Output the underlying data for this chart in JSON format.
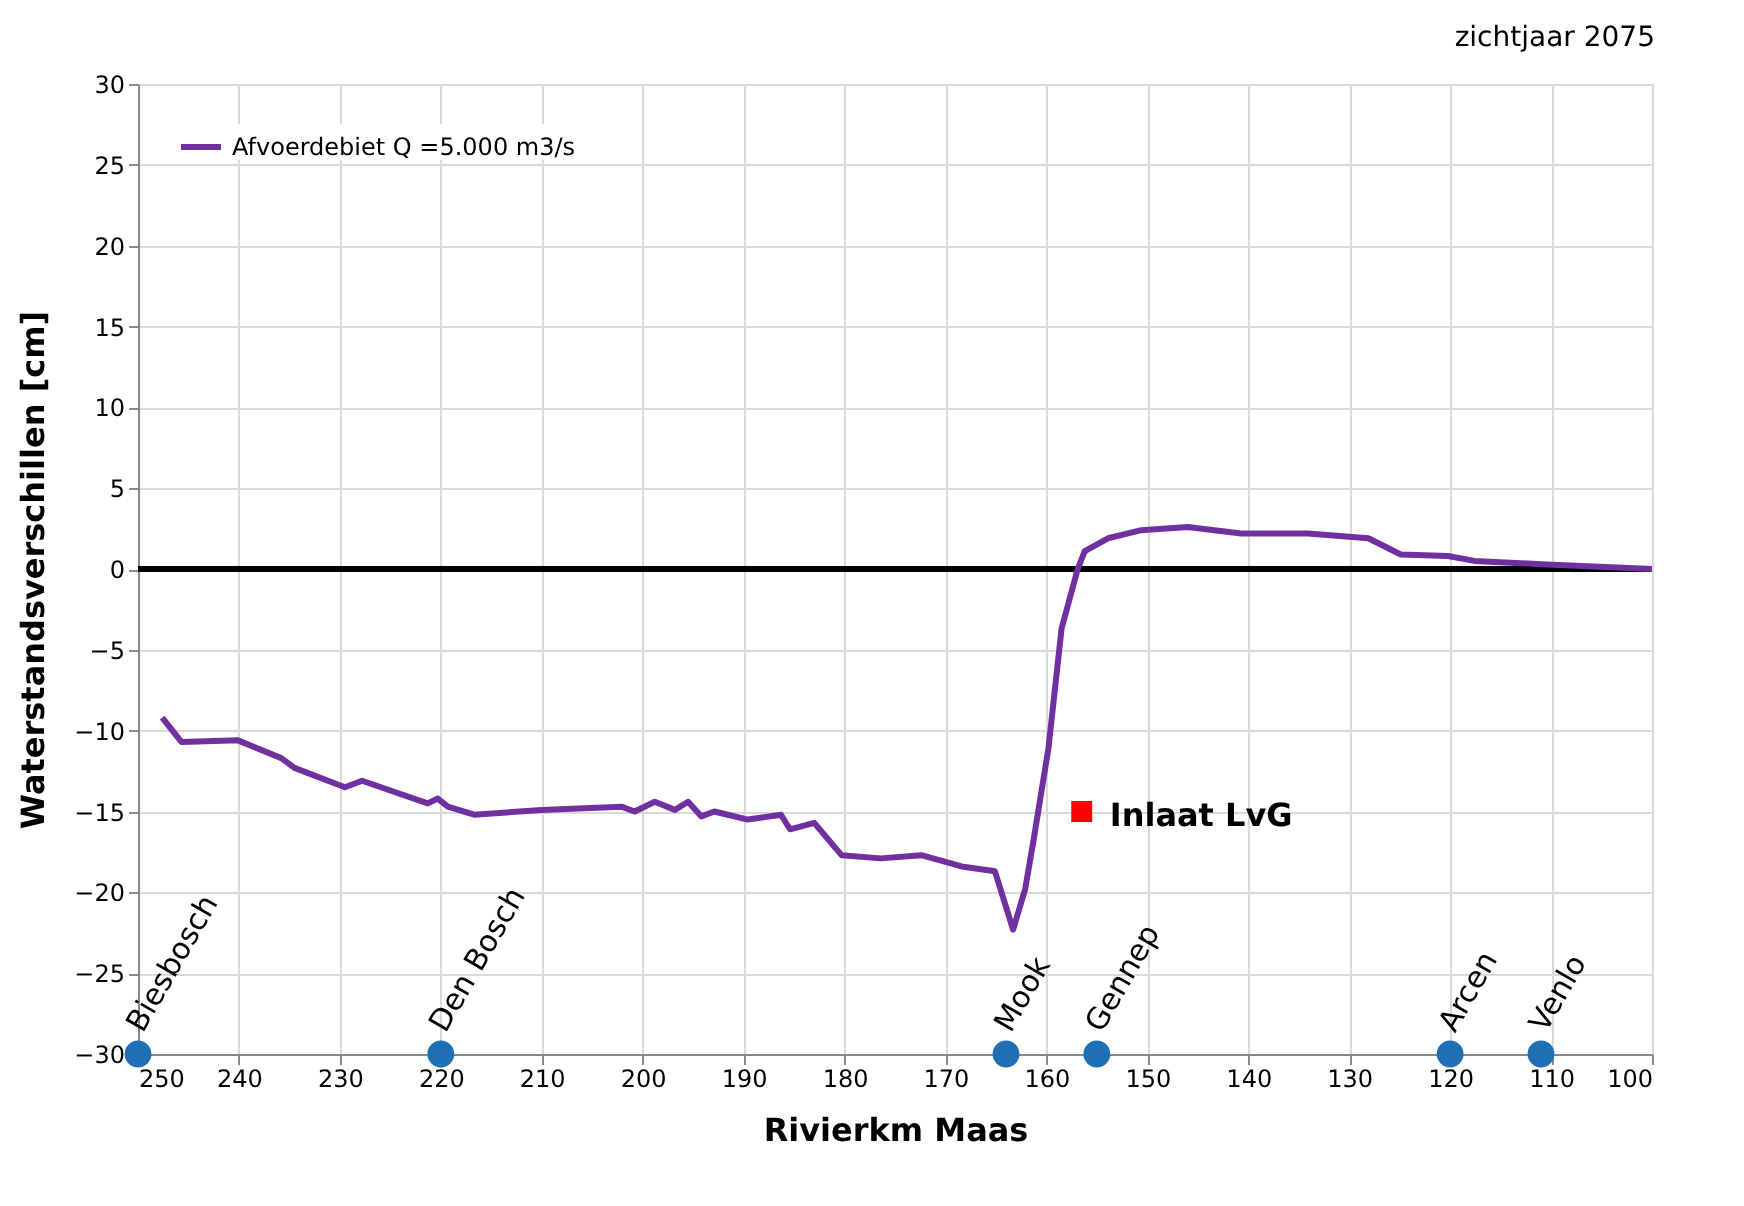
{
  "chart_data": {
    "type": "line",
    "title": "zichtjaar 2075",
    "xlabel": "Rivierkm Maas",
    "ylabel": "Waterstandsverschillen [cm]",
    "xlim": [
      250,
      100
    ],
    "xticks": [
      250,
      240,
      230,
      220,
      210,
      200,
      190,
      180,
      170,
      160,
      150,
      140,
      130,
      120,
      110,
      100
    ],
    "ylim": [
      -30,
      30
    ],
    "yticks": [
      -30,
      -25,
      -20,
      -15,
      -10,
      -5,
      0,
      5,
      10,
      15,
      20,
      25,
      30
    ],
    "grid": true,
    "legend": "top left",
    "ref_lines": [
      {
        "axis": "y",
        "value": 0,
        "color": "#000000"
      }
    ],
    "series": [
      {
        "name": "Afvoerdebiet Q =5.000 m3/s",
        "color": "#7030a0",
        "marker": "none",
        "line_style": "solid",
        "x": [
          247.6,
          245.7,
          240.1,
          235.8,
          234.5,
          229.5,
          227.8,
          221.3,
          220.3,
          219.3,
          216.7,
          210.0,
          202.1,
          200.8,
          198.8,
          196.8,
          195.5,
          194.2,
          192.9,
          189.6,
          186.3,
          185.4,
          183.0,
          180.3,
          176.4,
          172.4,
          168.4,
          165.1,
          163.3,
          162.1,
          161.2,
          159.8,
          158.5,
          156.9,
          156.2,
          153.9,
          150.6,
          146.0,
          140.7,
          134.1,
          128.1,
          124.9,
          120.2,
          117.6,
          111.0,
          100
        ],
        "values": [
          -9.2,
          -10.7,
          -10.6,
          -11.7,
          -12.3,
          -13.5,
          -13.1,
          -14.5,
          -14.2,
          -14.7,
          -15.2,
          -14.9,
          -14.7,
          -15.0,
          -14.4,
          -14.9,
          -14.4,
          -15.3,
          -15.0,
          -15.5,
          -15.2,
          -16.1,
          -15.7,
          -17.7,
          -17.9,
          -17.7,
          -18.4,
          -18.7,
          -22.3,
          -19.8,
          -16.5,
          -11.1,
          -3.7,
          0.0,
          1.1,
          1.9,
          2.4,
          2.6,
          2.2,
          2.2,
          1.9,
          0.9,
          0.8,
          0.5,
          0.3,
          0.0
        ]
      },
      {
        "name": "Inlaat LvG",
        "type": "scatter",
        "color": "#ff0000",
        "marker": "square",
        "x": [
          156.5
        ],
        "values": [
          -15
        ]
      },
      {
        "type": "scatter",
        "color": "#1f6fb4",
        "marker": "circle",
        "x": [
          250,
          220,
          164,
          155,
          120,
          111
        ],
        "values": [
          -30,
          -30,
          -30,
          -30,
          -30,
          -30
        ],
        "value_labels": [
          "Biesbosch",
          "Den Bosch",
          "Mook",
          "Gennep",
          "Arcen",
          "Venlo"
        ]
      }
    ]
  }
}
